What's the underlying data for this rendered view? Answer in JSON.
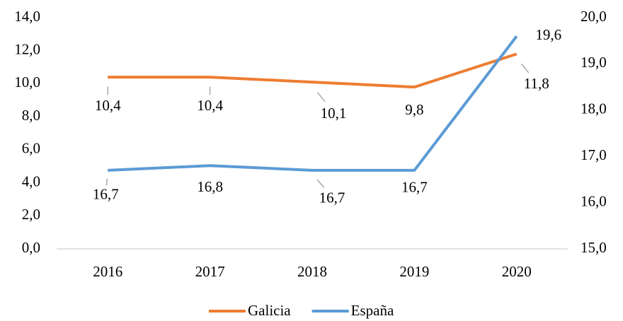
{
  "chart_data": {
    "type": "line",
    "categories": [
      "2016",
      "2017",
      "2018",
      "2019",
      "2020"
    ],
    "series": [
      {
        "name": "Galicia",
        "color": "#ed7d31",
        "values": [
          10.4,
          10.4,
          10.1,
          9.8,
          11.8
        ],
        "value_labels": [
          "10,4",
          "10,4",
          "10,1",
          "9,8",
          "11,8"
        ]
      },
      {
        "name": "España",
        "color": "#5b9bd5",
        "axis": "y2",
        "values": [
          16.7,
          16.8,
          16.7,
          16.7,
          19.6
        ],
        "value_labels": [
          "16,7",
          "16,8",
          "16,7",
          "16,7",
          "19,6"
        ]
      }
    ],
    "ylim": [
      0,
      14
    ],
    "yticks": [
      {
        "value": 0,
        "label": "0,0"
      },
      {
        "value": 2,
        "label": "2,0"
      },
      {
        "value": 4,
        "label": "4,0"
      },
      {
        "value": 6,
        "label": "6,0"
      },
      {
        "value": 8,
        "label": "8,0"
      },
      {
        "value": 10,
        "label": "10,0"
      },
      {
        "value": 12,
        "label": "12,0"
      },
      {
        "value": 14,
        "label": "14,0"
      }
    ],
    "y2lim": [
      15,
      20
    ],
    "y2ticks": [
      {
        "value": 15,
        "label": "15,0"
      },
      {
        "value": 16,
        "label": "16,0"
      },
      {
        "value": 17,
        "label": "17,0"
      },
      {
        "value": 18,
        "label": "18,0"
      },
      {
        "value": 19,
        "label": "19,0"
      },
      {
        "value": 20,
        "label": "20,0"
      }
    ],
    "legend": "bottom",
    "grid": false
  }
}
